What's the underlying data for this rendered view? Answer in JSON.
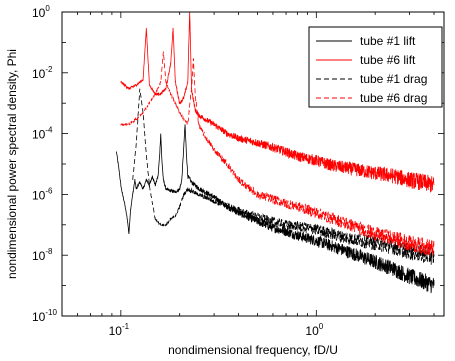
{
  "chart_data": {
    "type": "line",
    "title": "",
    "xlabel": "nondimensional frequency, fD/U",
    "ylabel": "nondimensional power spectral density, Phi",
    "x_scale": "log",
    "y_scale": "log",
    "xlim": [
      0.05,
      4.5
    ],
    "ylim": [
      1e-10,
      1
    ],
    "x_ticks": [
      {
        "value": 0.1,
        "base": "10",
        "exp": "-1"
      },
      {
        "value": 1,
        "base": "10",
        "exp": "0"
      }
    ],
    "y_ticks": [
      {
        "value": 1,
        "base": "10",
        "exp": "0"
      },
      {
        "value": 0.01,
        "base": "10",
        "exp": "-2"
      },
      {
        "value": 0.0001,
        "base": "10",
        "exp": "-4"
      },
      {
        "value": 1e-06,
        "base": "10",
        "exp": "-6"
      },
      {
        "value": 1e-08,
        "base": "10",
        "exp": "-8"
      },
      {
        "value": 1e-10,
        "base": "10",
        "exp": "-10"
      }
    ],
    "grid": false,
    "legend_position": "top-right",
    "series": [
      {
        "name": "tube #1 lift",
        "color": "#000000",
        "dash": "solid",
        "points": [
          [
            0.095,
            2.5e-05
          ],
          [
            0.098,
            6e-06
          ],
          [
            0.1,
            2e-06
          ],
          [
            0.102,
            1e-06
          ],
          [
            0.104,
            6e-07
          ],
          [
            0.106,
            3e-07
          ],
          [
            0.108,
            1.5e-07
          ],
          [
            0.11,
            5e-08
          ],
          [
            0.112,
            3e-07
          ],
          [
            0.115,
            1e-06
          ],
          [
            0.118,
            3e-06
          ],
          [
            0.12,
            1.5e-06
          ],
          [
            0.125,
            2.5e-06
          ],
          [
            0.13,
            1.5e-06
          ],
          [
            0.135,
            3e-06
          ],
          [
            0.14,
            2e-06
          ],
          [
            0.145,
            4e-06
          ],
          [
            0.15,
            2e-06
          ],
          [
            0.155,
            4e-06
          ],
          [
            0.158,
            2e-05
          ],
          [
            0.16,
            0.0001
          ],
          [
            0.162,
            1.5e-05
          ],
          [
            0.165,
            3e-06
          ],
          [
            0.17,
            1.5e-06
          ],
          [
            0.18,
            1.3e-06
          ],
          [
            0.19,
            1.2e-06
          ],
          [
            0.2,
            1.5e-06
          ],
          [
            0.205,
            3e-06
          ],
          [
            0.21,
            4e-05
          ],
          [
            0.213,
            0.0002
          ],
          [
            0.216,
            3e-05
          ],
          [
            0.22,
            4e-06
          ],
          [
            0.23,
            2.5e-06
          ],
          [
            0.25,
            1.6e-06
          ],
          [
            0.3,
            8e-07
          ],
          [
            0.35,
            4e-07
          ],
          [
            0.4,
            2.5e-07
          ],
          [
            0.5,
            1.3e-07
          ],
          [
            0.6,
            8e-08
          ],
          [
            0.7,
            6e-08
          ],
          [
            0.8,
            4.5e-08
          ],
          [
            1,
            3e-08
          ],
          [
            1.2,
            2e-08
          ],
          [
            1.5,
            1.2e-08
          ],
          [
            2,
            6e-09
          ],
          [
            2.5,
            3.5e-09
          ],
          [
            3,
            2e-09
          ],
          [
            3.5,
            1.4e-09
          ],
          [
            4,
            1e-09
          ]
        ]
      },
      {
        "name": "tube #6 lift",
        "color": "#ff0000",
        "dash": "solid",
        "points": [
          [
            0.1,
            0.005
          ],
          [
            0.11,
            0.003
          ],
          [
            0.12,
            0.004
          ],
          [
            0.13,
            0.006
          ],
          [
            0.135,
            0.3
          ],
          [
            0.14,
            0.004
          ],
          [
            0.15,
            0.002
          ],
          [
            0.16,
            0.002
          ],
          [
            0.17,
            0.003
          ],
          [
            0.18,
            0.02
          ],
          [
            0.185,
            0.3
          ],
          [
            0.19,
            0.005
          ],
          [
            0.2,
            0.001
          ],
          [
            0.21,
            0.0015
          ],
          [
            0.22,
            0.005
          ],
          [
            0.225,
            1
          ],
          [
            0.23,
            0.003
          ],
          [
            0.24,
            0.0006
          ],
          [
            0.25,
            0.0004
          ],
          [
            0.3,
            0.0002
          ],
          [
            0.35,
            0.0001
          ],
          [
            0.4,
            7e-05
          ],
          [
            0.5,
            5e-05
          ],
          [
            0.6,
            3.5e-05
          ],
          [
            0.7,
            2.5e-05
          ],
          [
            0.8,
            1.8e-05
          ],
          [
            1,
            1.3e-05
          ],
          [
            1.2,
            9e-06
          ],
          [
            1.5,
            7e-06
          ],
          [
            2,
            5e-06
          ],
          [
            2.5,
            4e-06
          ],
          [
            3,
            3e-06
          ],
          [
            3.5,
            2.5e-06
          ],
          [
            4,
            2e-06
          ]
        ]
      },
      {
        "name": "tube #1 drag",
        "color": "#000000",
        "dash": "dashed",
        "points": [
          [
            0.115,
            3e-06
          ],
          [
            0.12,
            5e-05
          ],
          [
            0.125,
            0.003
          ],
          [
            0.13,
            0.0005
          ],
          [
            0.135,
            2e-05
          ],
          [
            0.14,
            2e-06
          ],
          [
            0.145,
            5e-07
          ],
          [
            0.15,
            1.5e-07
          ],
          [
            0.16,
            1e-07
          ],
          [
            0.17,
            1e-07
          ],
          [
            0.18,
            1.5e-07
          ],
          [
            0.19,
            2e-07
          ],
          [
            0.2,
            4e-07
          ],
          [
            0.21,
            1e-06
          ],
          [
            0.22,
            1.5e-06
          ],
          [
            0.25,
            1e-06
          ],
          [
            0.3,
            6e-07
          ],
          [
            0.4,
            3e-07
          ],
          [
            0.5,
            1.8e-07
          ],
          [
            0.6,
            1.3e-07
          ],
          [
            0.7,
            1e-07
          ],
          [
            0.8,
            9e-08
          ],
          [
            1,
            7e-08
          ],
          [
            1.2,
            5e-08
          ],
          [
            1.5,
            3.5e-08
          ],
          [
            2,
            2.5e-08
          ],
          [
            2.5,
            1.8e-08
          ],
          [
            3,
            1.3e-08
          ],
          [
            3.5,
            1.1e-08
          ],
          [
            4,
            9e-09
          ]
        ]
      },
      {
        "name": "tube #6 drag",
        "color": "#ff0000",
        "dash": "dashed",
        "points": [
          [
            0.1,
            0.0002
          ],
          [
            0.11,
            0.0002
          ],
          [
            0.12,
            0.0003
          ],
          [
            0.13,
            0.0005
          ],
          [
            0.14,
            0.001
          ],
          [
            0.15,
            0.002
          ],
          [
            0.16,
            0.005
          ],
          [
            0.165,
            0.05
          ],
          [
            0.17,
            0.005
          ],
          [
            0.18,
            0.002
          ],
          [
            0.19,
            0.001
          ],
          [
            0.2,
            0.0005
          ],
          [
            0.21,
            0.0003
          ],
          [
            0.22,
            0.0002
          ],
          [
            0.23,
            0.003
          ],
          [
            0.235,
            0.03
          ],
          [
            0.24,
            0.002
          ],
          [
            0.25,
            0.0002
          ],
          [
            0.27,
            8e-05
          ],
          [
            0.3,
            3e-05
          ],
          [
            0.35,
            1e-05
          ],
          [
            0.4,
            3e-06
          ],
          [
            0.5,
            1e-06
          ],
          [
            0.6,
            7e-07
          ],
          [
            0.7,
            5e-07
          ],
          [
            0.8,
            4e-07
          ],
          [
            1,
            2.5e-07
          ],
          [
            1.2,
            1.6e-07
          ],
          [
            1.5,
            1e-07
          ],
          [
            2,
            5e-08
          ],
          [
            2.5,
            3.5e-08
          ],
          [
            3,
            2.5e-08
          ],
          [
            3.5,
            2e-08
          ],
          [
            4,
            1.6e-08
          ]
        ]
      }
    ]
  }
}
